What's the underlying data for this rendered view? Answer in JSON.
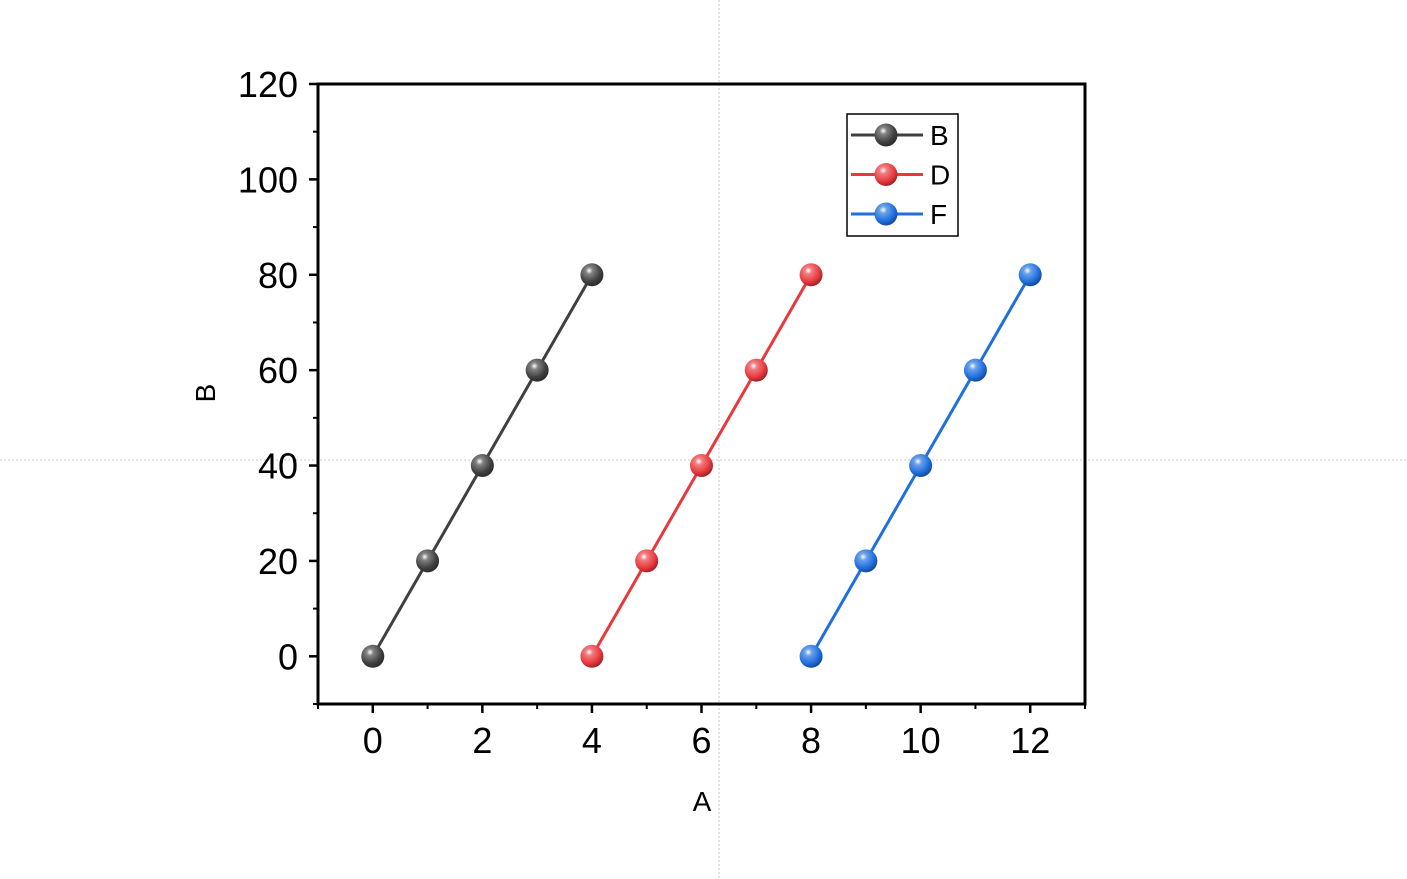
{
  "chart_data": {
    "type": "line",
    "xlabel": "A",
    "ylabel": "B",
    "xlim": [
      -1,
      13
    ],
    "ylim": [
      -10,
      120
    ],
    "xticks": [
      0,
      2,
      4,
      6,
      8,
      10,
      12
    ],
    "yticks": [
      0,
      20,
      40,
      60,
      80,
      100,
      120
    ],
    "x_minor_step": 1,
    "y_minor_step": 10,
    "grid": false,
    "legend_position": "top-right",
    "series": [
      {
        "name": "B",
        "color": "#404040",
        "x": [
          0,
          1,
          2,
          3,
          4
        ],
        "y": [
          0,
          20,
          40,
          60,
          80
        ]
      },
      {
        "name": "D",
        "color": "#e8383d",
        "x": [
          4,
          5,
          6,
          7,
          8
        ],
        "y": [
          0,
          20,
          40,
          60,
          80
        ]
      },
      {
        "name": "F",
        "color": "#1f6fdf",
        "x": [
          8,
          9,
          10,
          11,
          12
        ],
        "y": [
          0,
          20,
          40,
          60,
          80
        ]
      }
    ]
  }
}
